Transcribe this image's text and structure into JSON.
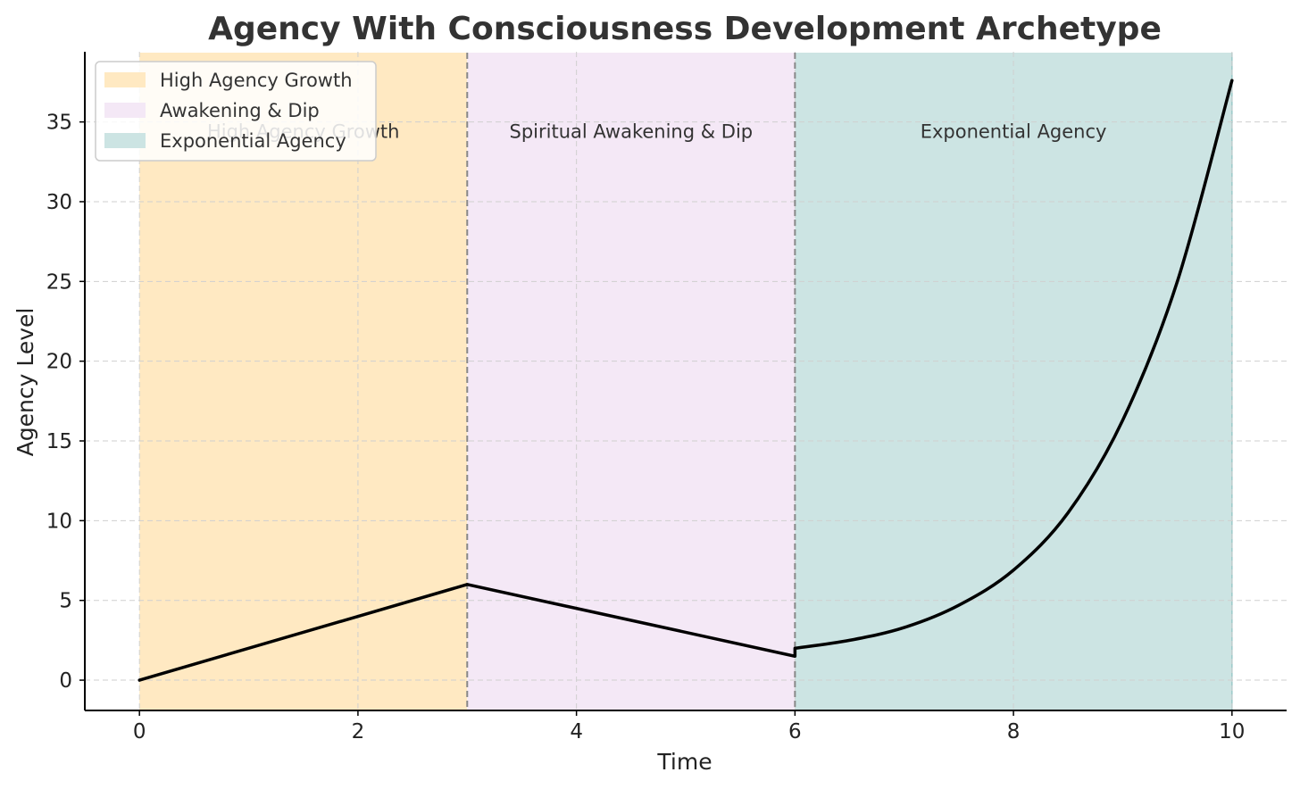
{
  "chart_data": {
    "type": "line",
    "title": "Agency With Consciousness Development Archetype",
    "xlabel": "Time",
    "ylabel": "Agency Level",
    "xlim": [
      -0.5,
      10.5
    ],
    "ylim": [
      -1.9,
      39.4
    ],
    "xticks": [
      0,
      2,
      4,
      6,
      8,
      10
    ],
    "yticks": [
      0,
      5,
      10,
      15,
      20,
      25,
      30,
      35
    ],
    "grid": true,
    "legend_position": "top-left",
    "phases": [
      {
        "name": "High Agency Growth",
        "label": "High Agency Growth",
        "start": 0,
        "end": 3,
        "color": "#FFE9C2"
      },
      {
        "name": "Awakening & Dip",
        "label": "Spiritual Awakening & Dip",
        "start": 3,
        "end": 6,
        "color": "#F4E8F6"
      },
      {
        "name": "Exponential Agency",
        "label": "Exponential Agency",
        "start": 6,
        "end": 10,
        "color": "#CCE4E3"
      }
    ],
    "phase_boundaries": [
      3,
      6
    ],
    "series": [
      {
        "color": "#000000",
        "x": [
          0,
          3,
          6,
          6.0,
          6.5,
          7,
          7.5,
          8,
          8.5,
          9,
          9.5,
          10
        ],
        "y": [
          0,
          6,
          1.5,
          2.0,
          2.5,
          3.3,
          4.7,
          6.9,
          10.5,
          16.3,
          25.0,
          37.6
        ]
      }
    ]
  }
}
